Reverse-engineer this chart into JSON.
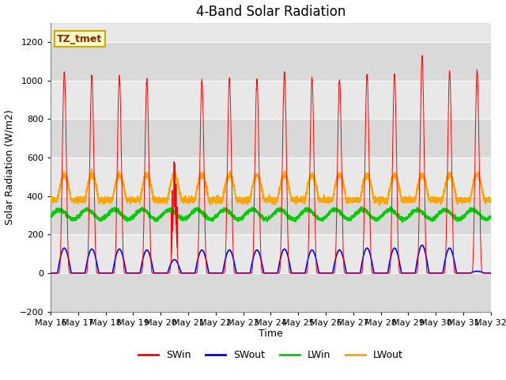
{
  "title": "4-Band Solar Radiation",
  "xlabel": "Time",
  "ylabel": "Solar Radiation (W/m2)",
  "ylim": [
    -200,
    1300
  ],
  "yticks": [
    -200,
    0,
    200,
    400,
    600,
    800,
    1000,
    1200
  ],
  "annotation_text": "TZ_tmet",
  "annotation_bg": "#FFFFCC",
  "annotation_border": "#CCAA00",
  "legend_entries": [
    "SWin",
    "SWout",
    "LWin",
    "LWout"
  ],
  "legend_colors": [
    "#FF0000",
    "#0000FF",
    "#00CC00",
    "#FFA500"
  ],
  "line_colors": {
    "SWin": "#FF0000",
    "SWout": "#0000FF",
    "LWin": "#00CC00",
    "LWout": "#FFA500"
  },
  "bg_color": "#FFFFFF",
  "plot_bg_color": "#E8E8E8",
  "grid_color": "#FFFFFF",
  "band_colors": [
    "#D8D8D8",
    "#E8E8E8"
  ],
  "n_days": 16,
  "start_day": 16,
  "points_per_day": 288,
  "SWin_peaks": [
    1050,
    1025,
    1020,
    1005,
    650,
    1000,
    1010,
    1005,
    1045,
    1010,
    1005,
    1025,
    1035,
    1130,
    1045,
    1050
  ],
  "SWout_peaks": [
    130,
    125,
    125,
    120,
    70,
    120,
    120,
    120,
    125,
    120,
    120,
    130,
    130,
    145,
    130,
    10
  ],
  "LWin_base": 305,
  "LWin_amplitude": 25,
  "LWout_base": 380,
  "LWout_amplitude": 130,
  "title_fontsize": 12,
  "axis_label_fontsize": 9,
  "tick_fontsize": 8,
  "legend_fontsize": 9,
  "annotation_fontsize": 9
}
